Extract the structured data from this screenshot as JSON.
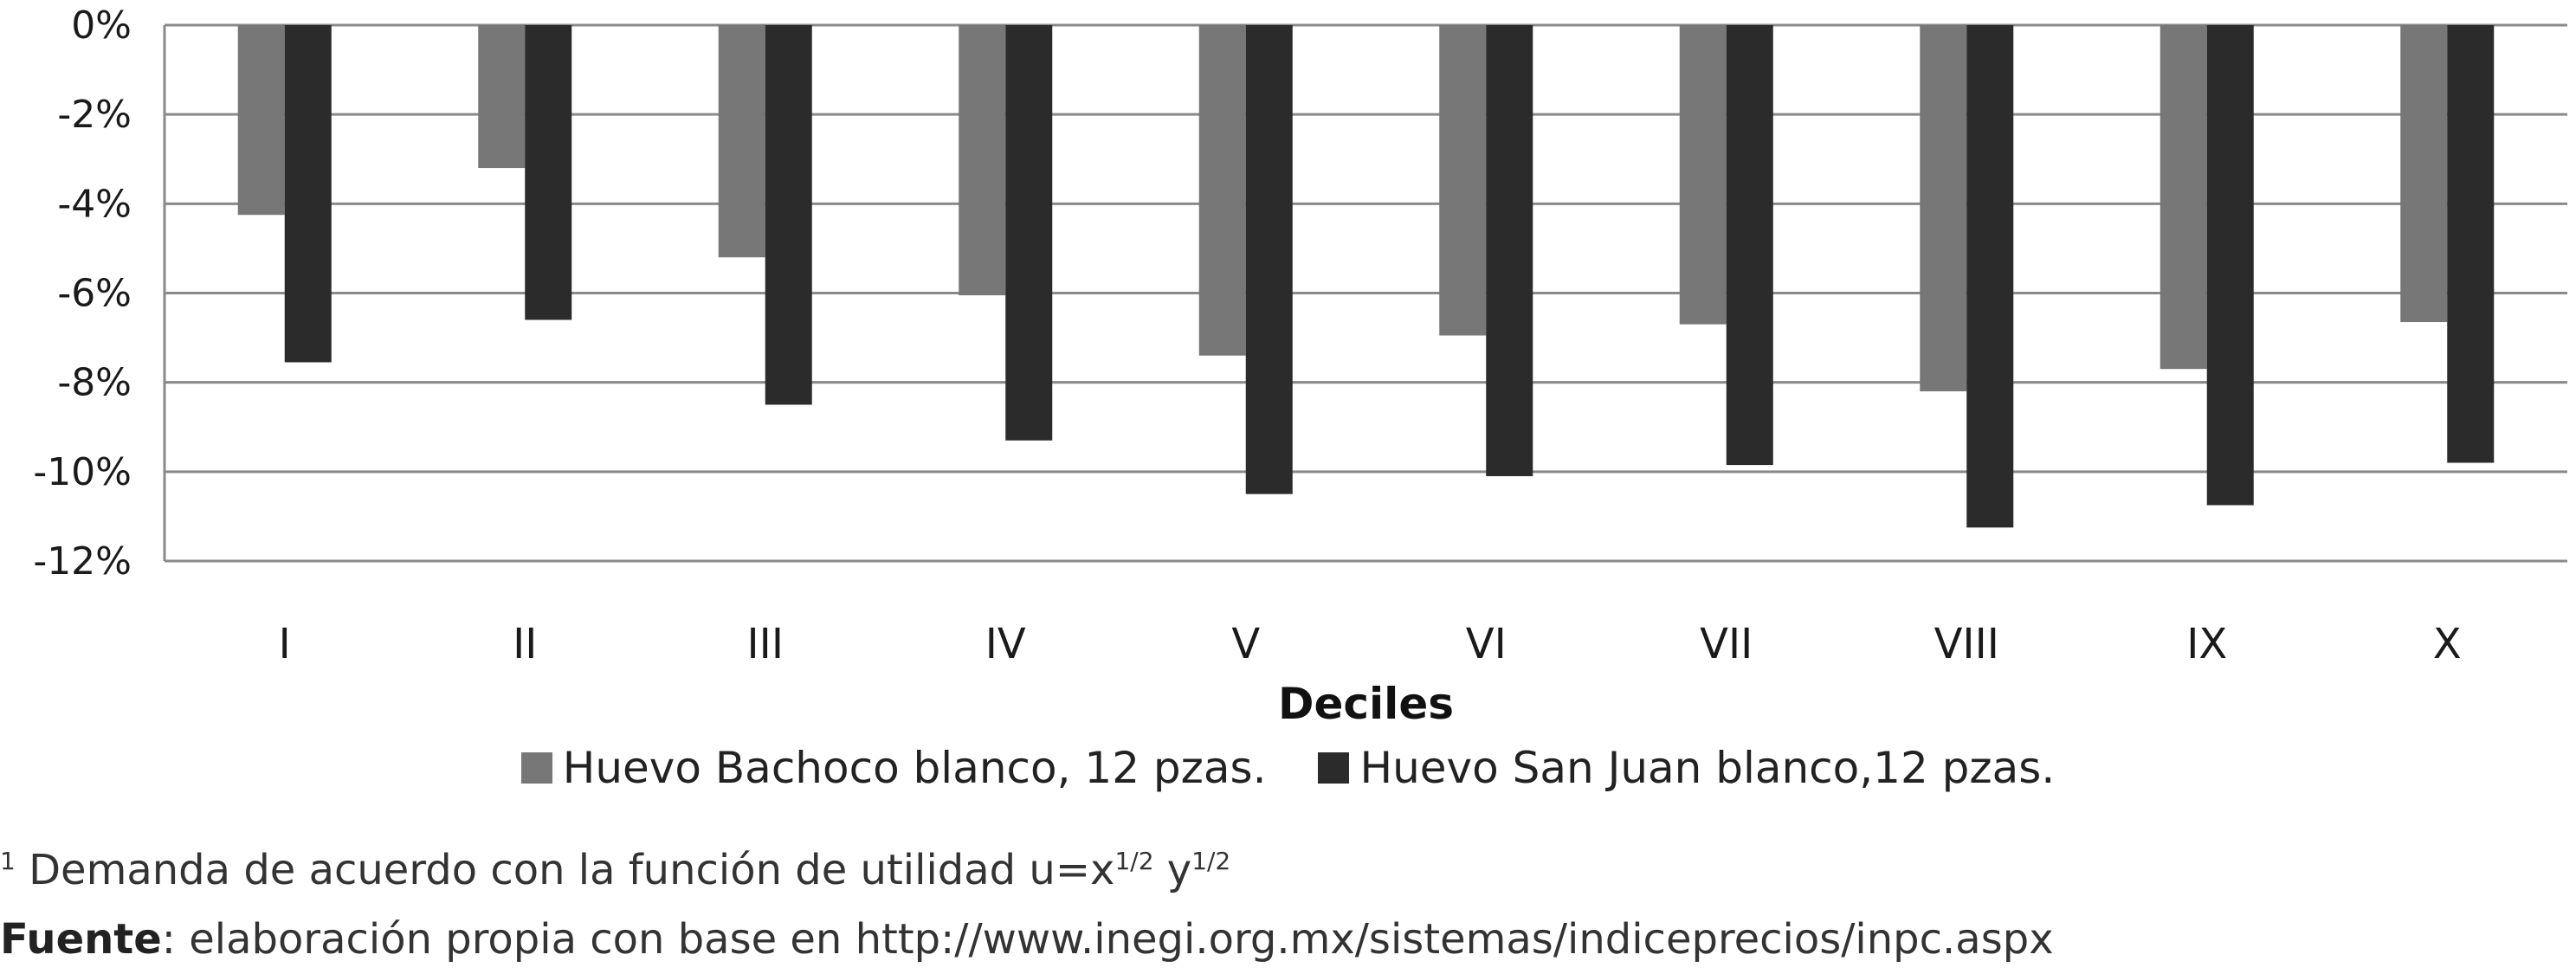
{
  "chart_data": {
    "type": "bar",
    "categories": [
      "I",
      "II",
      "III",
      "IV",
      "V",
      "VI",
      "VII",
      "VIII",
      "IX",
      "X"
    ],
    "series": [
      {
        "name": "Huevo Bachoco blanco, 12 pzas.",
        "color": "#777777",
        "values": [
          -4.25,
          -3.2,
          -5.2,
          -6.05,
          -7.4,
          -6.95,
          -6.7,
          -8.2,
          -7.7,
          -6.65
        ]
      },
      {
        "name": "Huevo San Juan blanco,12 pzas.",
        "color": "#2b2b2b",
        "values": [
          -7.55,
          -6.6,
          -8.5,
          -9.3,
          -10.5,
          -10.1,
          -9.85,
          -11.25,
          -10.75,
          -9.8
        ]
      }
    ],
    "ylim": [
      -12,
      0
    ],
    "yticks": [
      "0%",
      "-2%",
      "-4%",
      "-6%",
      "-8%",
      "-10%",
      "-12%"
    ],
    "xlabel": "Deciles",
    "ylabel": "",
    "grid": true,
    "legend_position": "bottom"
  },
  "notes": {
    "footnote_marker": "1",
    "footnote_text": "Demanda de acuerdo con la función de utilidad u=x",
    "footnote_exp1": "1/2",
    "footnote_mid": " y",
    "footnote_exp2": "1/2",
    "source_label": "Fuente",
    "source_text": ": elaboración propia con base en http://www.inegi.org.mx/sistemas/indiceprecios/inpc.aspx"
  }
}
